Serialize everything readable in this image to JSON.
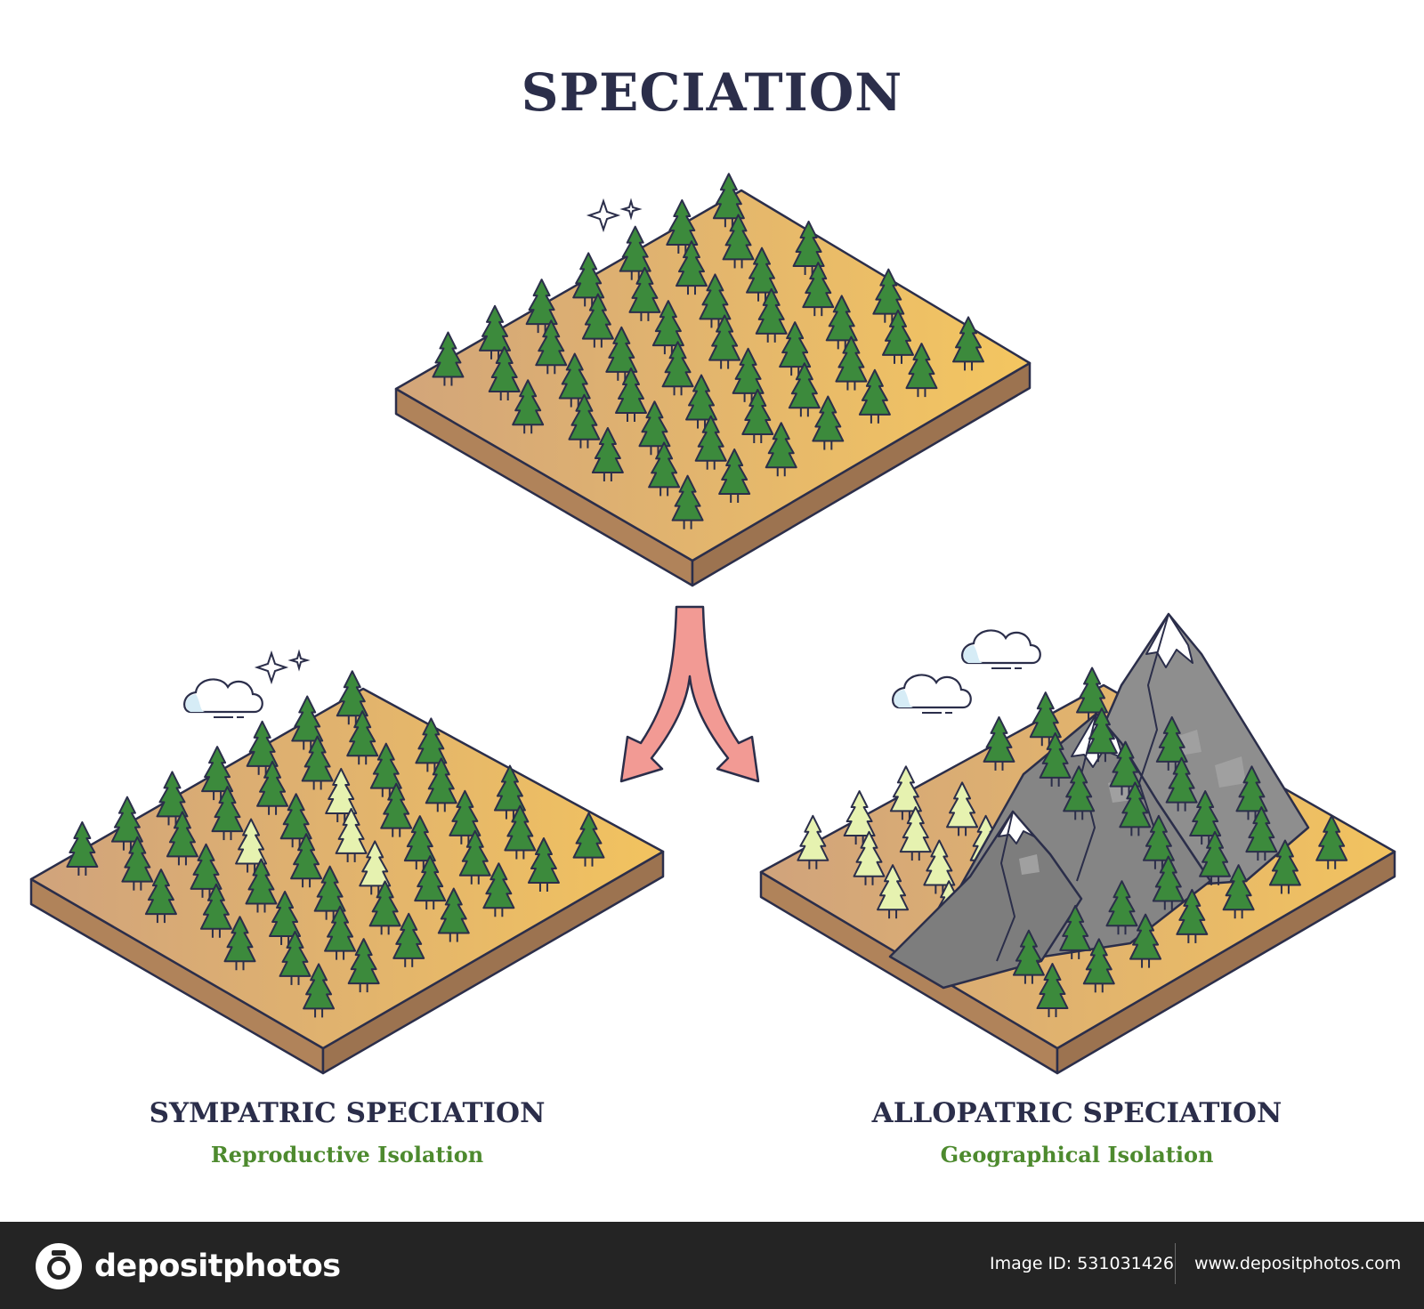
{
  "title": "SPECIATION",
  "sympatric": {
    "title": "SYMPATRIC SPECIATION",
    "subtitle": "Reproductive Isolation"
  },
  "allopatric": {
    "title": "ALLOPATRIC SPECIATION",
    "subtitle": "Geographical Isolation"
  },
  "footer": {
    "brand": "depositphotos",
    "image_id": "Image ID: 531031426",
    "url": "www.depositphotos.com"
  },
  "colors": {
    "ground_top_light": "#f3c560",
    "ground_top_dark": "#d4a87a",
    "ground_side": "#b88a5c",
    "tree_dark": "#3c8a3c",
    "tree_light": "#e6f2b0",
    "mountain": "#8a8a8a",
    "snow": "#ffffff",
    "arrow": "#f29a94",
    "cloud": "#d6ecf6",
    "outline": "#2b2e4a"
  }
}
